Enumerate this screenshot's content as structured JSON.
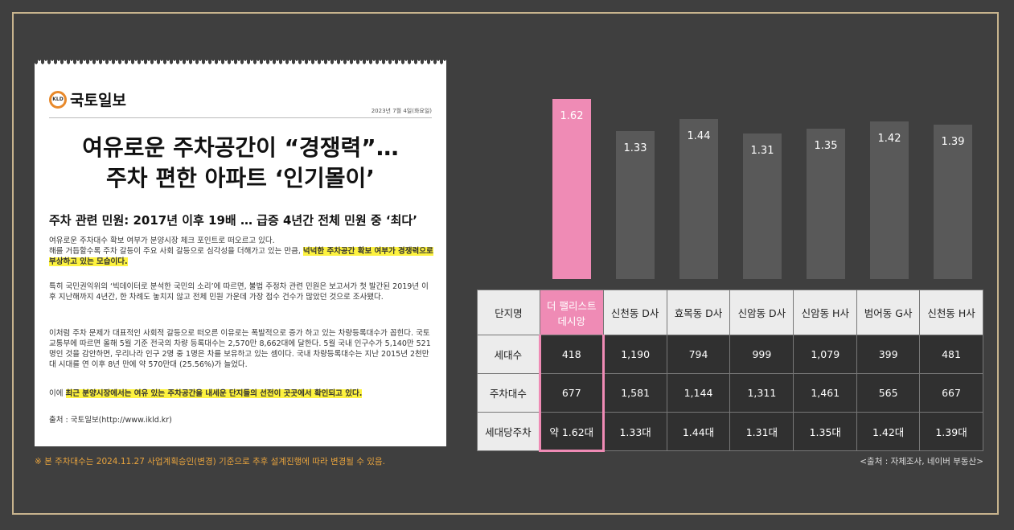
{
  "article": {
    "logo_badge": "KLD",
    "logo_name": "국토일보",
    "date": "2023년 7월 4일(화요일)",
    "headline_line1": "여유로운 주차공간이 “경쟁력”…",
    "headline_line2": "주차 편한 아파트 ‘인기몰이’",
    "subhead": "주차 관련 민원: 2017년 이후 19배 … 급증 4년간 전체 민원 중 ‘최다’",
    "p1_line1": "여유로운 주차대수 확보 여부가 분양시장 체크 포인트로 떠오르고 있다.",
    "p1_line2": "해를 거듭할수록 주차 갈등이 주요 사회 갈등으로 심각성을 더해가고 있는 만큼, ",
    "p1_highlight": "넉넉한 주차공간 확보 여부가 경쟁력으로 부상하고 있는 모습이다.",
    "p2": "특히 국민권익위의 ‘빅데이터로 분석한 국민의 소리’에 따르면, 불법 주정차 관련 민원은 보고서가 첫 발간된 2019년 이후 지난해까지 4년간, 한 차례도 놓치지 않고 전체 민원 가운데 가장 접수 건수가 많았던 것으로 조사됐다.",
    "p3": "이처럼 주차 문제가 대표적인 사회적 갈등으로 떠오른 이유로는 폭발적으로 증가 하고 있는 차량등록대수가 꼽힌다. 국토교통부에 따르면 올해 5월 기준 전국의 차량 등록대수는 2,570만 8,662대에 달한다. 5월 국내 인구수가 5,140만 521명인 것을 감안하면, 우리나라 인구 2명 중 1명은 차를 보유하고 있는 셈이다. 국내 차량등록대수는 지난 2015년 2천만대 시대를 연 이후 8년 만에 약 570만대 (25.56%)가 늘었다.",
    "p4_prefix": "이에 ",
    "p4_highlight": "최근 분양시장에서는 여유 있는 주차공간을 내세운 단지들의 선전이 곳곳에서 확인되고 있다.",
    "source": "출처 : 국토일보(http://www.ikld.kr)"
  },
  "footnote": "※ 본 주차대수는 2024.11.27 사업계획승인(변경) 기준으로 추후 설계진행에 따라 변경될 수 있음.",
  "table_source": "<출처 : 자체조사, 네이버 부동산>",
  "colors": {
    "highlight": "#ef8bb5",
    "bar": "#595959",
    "accent_gold": "#c8b48e",
    "footnote": "#e8a33d"
  },
  "table": {
    "header_label": "단지명",
    "row_labels": [
      "세대수",
      "주차대수",
      "세대당주차"
    ],
    "columns": [
      {
        "name_line1": "더 팰리스트",
        "name_line2": "데시앙",
        "households": "418",
        "parking": "677",
        "per_household": "약 1.62대"
      },
      {
        "name_line1": "신천동 D사",
        "name_line2": "",
        "households": "1,190",
        "parking": "1,581",
        "per_household": "1.33대"
      },
      {
        "name_line1": "효목동 D사",
        "name_line2": "",
        "households": "794",
        "parking": "1,144",
        "per_household": "1.44대"
      },
      {
        "name_line1": "신암동 D사",
        "name_line2": "",
        "households": "999",
        "parking": "1,311",
        "per_household": "1.31대"
      },
      {
        "name_line1": "신암동 H사",
        "name_line2": "",
        "households": "1,079",
        "parking": "1,461",
        "per_household": "1.35대"
      },
      {
        "name_line1": "범어동 G사",
        "name_line2": "",
        "households": "399",
        "parking": "565",
        "per_household": "1.42대"
      },
      {
        "name_line1": "신천동 H사",
        "name_line2": "",
        "households": "481",
        "parking": "667",
        "per_household": "1.39대"
      }
    ]
  },
  "chart_data": {
    "type": "bar",
    "categories": [
      "더 팰리스트 데시앙",
      "신천동 D사",
      "효목동 D사",
      "신암동 D사",
      "신암동 H사",
      "범어동 G사",
      "신천동 H사"
    ],
    "values": [
      1.62,
      1.33,
      1.44,
      1.31,
      1.35,
      1.42,
      1.39
    ],
    "labels": [
      "1.62",
      "1.33",
      "1.44",
      "1.31",
      "1.35",
      "1.42",
      "1.39"
    ],
    "highlight_index": 0
  }
}
